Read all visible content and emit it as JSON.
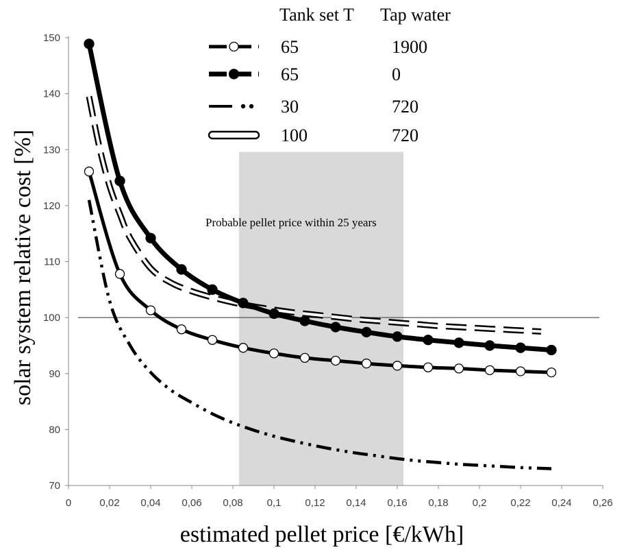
{
  "chart_data": {
    "type": "line",
    "title": "",
    "xlabel": "estimated pellet price [€/kWh]",
    "ylabel": "solar system relative cost [%]",
    "xlim": [
      0,
      0.26
    ],
    "ylim": [
      70,
      150
    ],
    "x_ticks": [
      "0",
      "0,02",
      "0,04",
      "0,06",
      "0,08",
      "0,1",
      "0,12",
      "0,14",
      "0,16",
      "0,18",
      "0,2",
      "0,22",
      "0,24",
      "0,26"
    ],
    "y_ticks": [
      "70",
      "80",
      "90",
      "100",
      "110",
      "120",
      "130",
      "140",
      "150"
    ],
    "reference_line": {
      "y": 100
    },
    "shaded_band": {
      "x_range": [
        0.083,
        0.163
      ],
      "top": 129.6,
      "label": "Probable pellet price within 25 years",
      "color": "#d9d9d9"
    },
    "legend": {
      "position": "top-center",
      "header": [
        "Tank set T",
        "Tap water"
      ],
      "entries": [
        {
          "tank_set_t": "65",
          "tap_water": "1900",
          "style": "white-dash-white-marker"
        },
        {
          "tank_set_t": "65",
          "tap_water": "0",
          "style": "black-dash-black-marker"
        },
        {
          "tank_set_t": "30",
          "tap_water": "720",
          "style": "dash-dot-dot"
        },
        {
          "tank_set_t": "100",
          "tap_water": "720",
          "style": "hollow-dash"
        }
      ]
    },
    "series": [
      {
        "style": "white-dash-white-marker",
        "x": [
          0.01,
          0.025,
          0.04,
          0.055,
          0.07,
          0.085,
          0.1,
          0.115,
          0.13,
          0.145,
          0.16,
          0.175,
          0.19,
          0.205,
          0.22,
          0.235
        ],
        "y": [
          126.1,
          107.8,
          101.3,
          97.9,
          96.0,
          94.6,
          93.6,
          92.8,
          92.3,
          91.8,
          91.4,
          91.1,
          90.9,
          90.6,
          90.4,
          90.2
        ]
      },
      {
        "style": "black-dash-black-marker",
        "x": [
          0.01,
          0.025,
          0.04,
          0.055,
          0.07,
          0.085,
          0.1,
          0.115,
          0.13,
          0.145,
          0.16,
          0.175,
          0.19,
          0.205,
          0.22,
          0.235
        ],
        "y": [
          148.9,
          124.4,
          114.2,
          108.6,
          105.0,
          102.6,
          100.7,
          99.4,
          98.3,
          97.4,
          96.6,
          96.0,
          95.5,
          95.0,
          94.6,
          94.2
        ]
      },
      {
        "style": "dash-dot-dot",
        "x": [
          0.01,
          0.02,
          0.03,
          0.04,
          0.05,
          0.06,
          0.07,
          0.08,
          0.09,
          0.1,
          0.11,
          0.12,
          0.13,
          0.14,
          0.15,
          0.16,
          0.17,
          0.18,
          0.19,
          0.2,
          0.21,
          0.22,
          0.235
        ],
        "y": [
          121.0,
          103.0,
          95.0,
          90.2,
          87.0,
          84.8,
          82.8,
          81.2,
          79.9,
          78.8,
          77.9,
          77.1,
          76.4,
          75.8,
          75.3,
          74.8,
          74.4,
          74.1,
          73.8,
          73.6,
          73.4,
          73.2,
          73.0
        ]
      },
      {
        "style": "hollow-dash",
        "x": [
          0.01,
          0.015,
          0.02,
          0.025,
          0.03,
          0.04,
          0.05,
          0.06,
          0.07,
          0.08,
          0.09,
          0.1,
          0.11,
          0.12,
          0.13,
          0.14,
          0.15,
          0.16,
          0.17,
          0.18,
          0.19,
          0.2,
          0.21,
          0.22,
          0.23
        ],
        "y": [
          139.5,
          130.5,
          123.5,
          118.5,
          114.2,
          108.8,
          106.2,
          104.7,
          103.6,
          102.7,
          102.0,
          101.4,
          100.9,
          100.5,
          100.1,
          99.7,
          99.4,
          99.1,
          98.8,
          98.5,
          98.3,
          98.1,
          97.9,
          97.7,
          97.5
        ]
      }
    ]
  }
}
